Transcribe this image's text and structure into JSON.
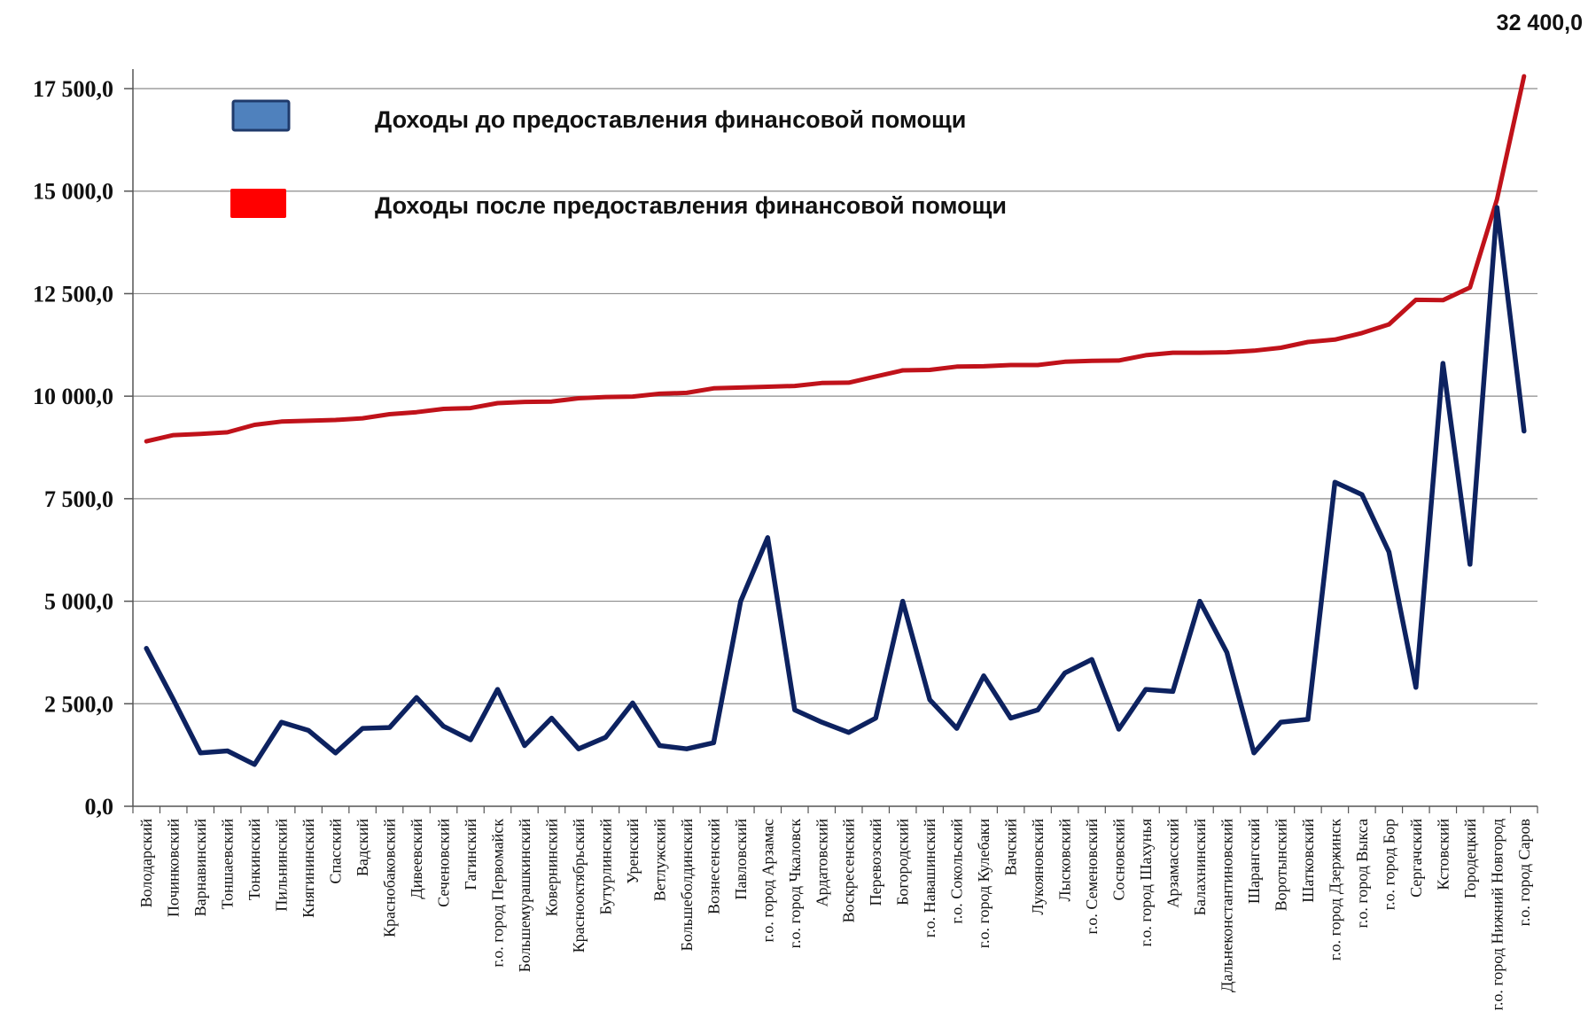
{
  "chart_data": {
    "type": "line",
    "title": "",
    "xlabel": "",
    "ylabel": "",
    "ylim": [
      0,
      17500
    ],
    "yticks": [
      "0,0",
      "2 500,0",
      "5 000,0",
      "7 500,0",
      "10 000,0",
      "12 500,0",
      "15 000,0",
      "17 500,0"
    ],
    "grid": true,
    "legend_position": "top-left",
    "annotation": "32 400,0",
    "categories": [
      "Володарский",
      "Починковский",
      "Варнавинский",
      "Тоншаевский",
      "Тонкинский",
      "Пильнинский",
      "Княгининский",
      "Спасский",
      "Вадский",
      "Краснобаковский",
      "Дивеевский",
      "Сеченовский",
      "Гагинский",
      "г.о. город Первомайск",
      "Большемурашкинский",
      "Ковернинский",
      "Краснооктябрьский",
      "Бутурлинский",
      "Уренский",
      "Ветлужский",
      "Большеболдинский",
      "Вознесенский",
      "Павловский",
      "г.о. город Арзамас",
      "г.о. город Чкаловск",
      "Ардатовский",
      "Воскресенский",
      "Перевозский",
      "Богородский",
      "г.о. Навашинский",
      "г.о. Сокольский",
      "г.о. город Кулебаки",
      "Вачский",
      "Лукояновский",
      "Лысковский",
      "г.о. Семеновский",
      "Сосновский",
      "г.о. город Шахунья",
      "Арзамасский",
      "Балахнинский",
      "Дальнеконстантиновский",
      "Шарангский",
      "Воротынский",
      "Шатковский",
      "г.о. город Дзержинск",
      "г.о. город Выкса",
      "г.о. город Бор",
      "Сергачский",
      "Кстовский",
      "Городецкий",
      "г.о. город Нижний Новгород",
      "г.о. город Саров"
    ],
    "series": [
      {
        "name": "Доходы до предоставления финансовой помощи",
        "color": "#0d2260",
        "legend_color": "#4f81bd",
        "values": [
          3850,
          2600,
          1300,
          1350,
          1020,
          2050,
          1850,
          1300,
          1900,
          1920,
          2650,
          1950,
          1620,
          2850,
          1480,
          2150,
          1400,
          1680,
          2520,
          1480,
          1400,
          1550,
          5000,
          6550,
          2350,
          2050,
          1800,
          2150,
          5000,
          2600,
          1900,
          3180,
          2150,
          2350,
          3250,
          3580,
          1880,
          2850,
          2800,
          5000,
          3750,
          1300,
          2050,
          2120,
          7900,
          7600,
          6200,
          2900,
          10800,
          5900,
          14600,
          9150
        ]
      },
      {
        "name": "Доходы после предоставления финансовой помощи",
        "color": "#c0121a",
        "legend_color": "#ff0000",
        "values": [
          8900,
          9050,
          9080,
          9120,
          9300,
          9380,
          9400,
          9420,
          9460,
          9560,
          9610,
          9690,
          9710,
          9830,
          9860,
          9870,
          9950,
          9980,
          9990,
          10060,
          10080,
          10190,
          10210,
          10230,
          10250,
          10320,
          10330,
          10480,
          10630,
          10640,
          10720,
          10730,
          10760,
          10760,
          10840,
          10860,
          10870,
          11000,
          11060,
          11060,
          11070,
          11110,
          11180,
          11320,
          11380,
          11540,
          11750,
          12350,
          12340,
          12650,
          14800,
          17800
        ]
      }
    ]
  }
}
